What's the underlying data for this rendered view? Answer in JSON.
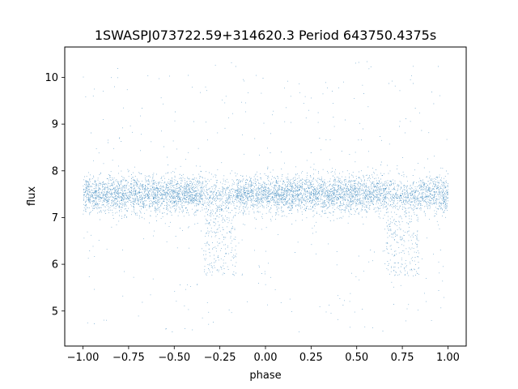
{
  "chart_data": {
    "type": "scatter",
    "title": "1SWASPJ073722.59+314620.3 Period 643750.4375s",
    "xlabel": "phase",
    "ylabel": "flux",
    "xlim": [
      -1.1,
      1.1
    ],
    "ylim": [
      4.25,
      10.65
    ],
    "x_ticks": [
      -1.0,
      -0.75,
      -0.5,
      -0.25,
      0.0,
      0.25,
      0.5,
      0.75,
      1.0
    ],
    "x_tick_labels": [
      "−1.00",
      "−0.75",
      "−0.50",
      "−0.25",
      "0.00",
      "0.25",
      "0.50",
      "0.75",
      "1.00"
    ],
    "y_ticks": [
      5,
      6,
      7,
      8,
      9,
      10
    ],
    "y_tick_labels": [
      "5",
      "6",
      "7",
      "8",
      "9",
      "10"
    ],
    "grid": false,
    "legend": "none",
    "series": [
      {
        "color": "#1f77b4",
        "phase_range": [
          -1.0,
          1.0
        ],
        "baseline_flux": 7.5,
        "band": [
          7.2,
          7.9
        ],
        "dip_phases": [
          -0.25,
          0.75
        ],
        "dip_flux_min": 5.75,
        "flux_range": [
          4.55,
          10.35
        ]
      }
    ]
  }
}
